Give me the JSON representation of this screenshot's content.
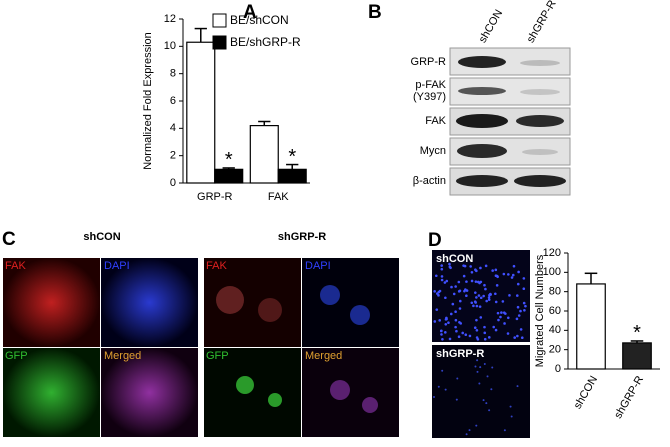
{
  "panel_labels": [
    "A",
    "B",
    "C",
    "D"
  ],
  "chart_data": [
    {
      "type": "bar",
      "ylabel": "Normalized Fold Expression",
      "categories": [
        "GRP-R",
        "FAK"
      ],
      "series": [
        {
          "name": "BE/shCON",
          "color": "#ffffff",
          "values": [
            10.3,
            4.2
          ],
          "errors": [
            1.0,
            0.3
          ]
        },
        {
          "name": "BE/shGRP-R",
          "color": "#000000",
          "values": [
            1.0,
            1.0
          ],
          "errors": [
            0.1,
            0.35
          ],
          "annotations": [
            "*",
            "*"
          ]
        }
      ],
      "ylim": [
        0,
        12
      ],
      "yticks": [
        0,
        2,
        4,
        6,
        8,
        10,
        12
      ]
    },
    {
      "type": "bar",
      "ylabel": "Migrated Cell Numbers",
      "categories": [
        "shCON",
        "shGRP-R"
      ],
      "series": [
        {
          "colors": [
            "#ffffff",
            "#222222"
          ],
          "values": [
            88,
            27
          ],
          "errors": [
            11,
            2
          ],
          "annotations": [
            null,
            "*"
          ]
        }
      ],
      "ylim": [
        0,
        120
      ],
      "yticks": [
        0,
        20,
        40,
        60,
        80,
        100,
        120
      ]
    }
  ],
  "blot": {
    "lanes": [
      "shCON",
      "shGRP-R"
    ],
    "rows": [
      [
        "GRP-R"
      ],
      [
        "p-FAK",
        "(Y397)"
      ],
      [
        "FAK"
      ],
      [
        "Mycn"
      ],
      [
        "β-actin"
      ]
    ]
  },
  "micrographs": {
    "groups": [
      "shCON",
      "shGRP-R"
    ],
    "channels": [
      "FAK",
      "DAPI",
      "GFP",
      "Merged"
    ]
  },
  "migration_images": [
    "shCON",
    "shGRP-R"
  ]
}
